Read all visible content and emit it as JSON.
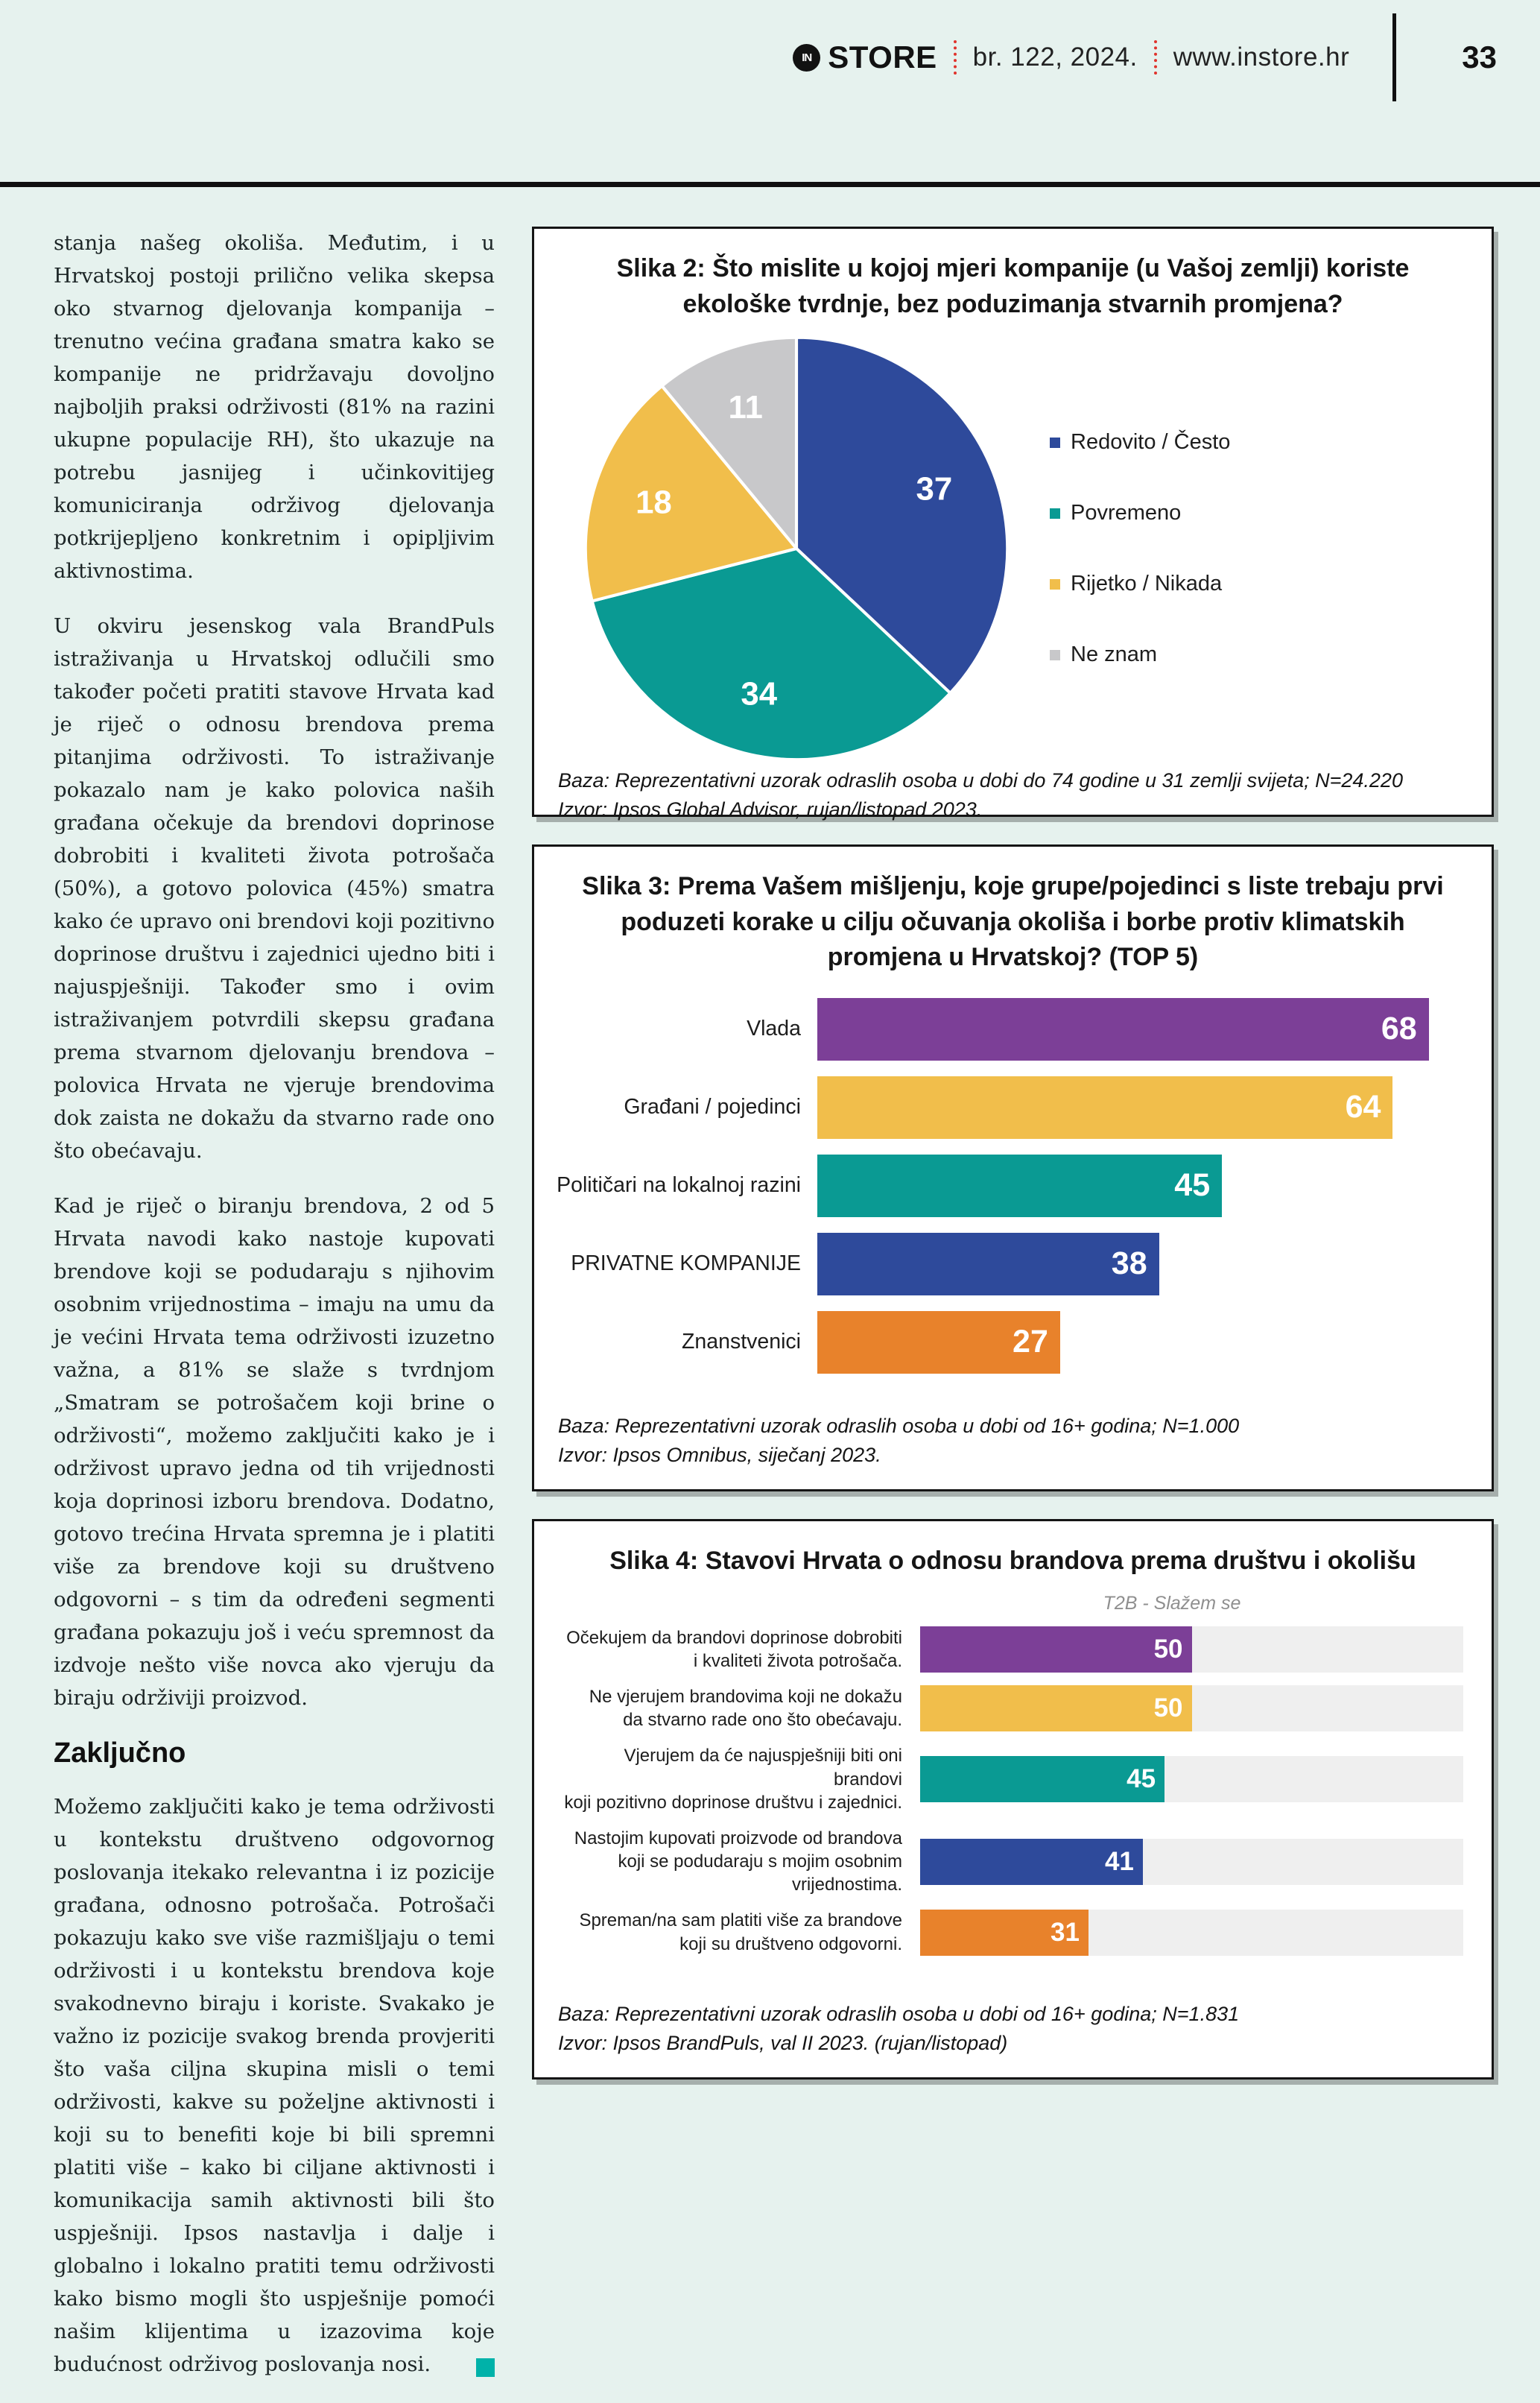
{
  "header": {
    "logo_in": "IN",
    "logo_store": "STORE",
    "issue": "br. 122, 2024.",
    "website": "www.instore.hr",
    "page_number": "33"
  },
  "article": {
    "paragraphs": [
      "stanja našeg okoliša. Međutim, i u Hrvatskoj postoji prilično velika skepsa oko stvarnog djelovanja kompanija – trenutno većina građana smatra kako se kompanije ne pridržavaju dovoljno najboljih praksi održivosti (81% na razini ukupne populacije RH), što ukazuje na potrebu jasnijeg i učinkovitijeg komuniciranja održivog djelovanja potkrijepljeno konkretnim i opipljivim aktivnostima.",
      "U okviru jesenskog vala BrandPuls istraživanja u Hrvatskoj odlučili smo također početi pratiti stavove Hrvata kad je riječ o odnosu brendova prema pitanjima održivosti. To istraživanje pokazalo nam je kako polovica naših građana očekuje da brendovi doprinose dobrobiti i kvaliteti života potrošača (50%), a gotovo polovica (45%) smatra kako će upravo oni brendovi koji pozitivno doprinose društvu i zajednici ujedno biti i najuspješniji. Također smo i ovim istraživanjem potvrdili skepsu građana prema stvarnom djelovanju brendova – polovica Hrvata ne vjeruje brendovima dok zaista ne dokažu da stvarno rade ono što obećavaju.",
      "Kad je riječ o biranju brendova, 2 od 5 Hrvata navodi kako nastoje kupovati brendove koji se podudaraju s njihovim osobnim vrijednostima – imaju na umu da je većini Hrvata tema održivosti izuzetno važna, a 81% se slaže s tvrdnjom „Smatram se potrošačem koji brine o održivosti“, možemo zaključiti kako je i održivost upravo jedna od tih vrijednosti koja doprinosi izboru brendova. Dodatno, gotovo trećina Hrvata spremna je i platiti više za brendove koji su društveno odgovorni – s tim da određeni segmenti građana pokazuju još i veću spremnost da izdvoje nešto više novca ako vjeruju da biraju održiviji proizvod."
    ],
    "subheading": "Zaključno",
    "closing_paragraph": "Možemo zaključiti kako je tema održivosti u kontekstu društveno odgovornog poslovanja itekako relevantna i iz pozicije građana, odnosno potrošača. Potrošači pokazuju kako sve više razmišljaju o temi održivosti i u kontekstu brendova koje svakodnevno biraju i koriste. Svakako je važno iz pozicije svakog brenda provjeriti što vaša ciljna skupina misli o temi održivosti, kakve su poželjne aktivnosti i koji su to benefiti koje bi bili spremni platiti više – kako bi ciljane aktivnosti i komunikacija samih aktivnosti bili što uspješniji. Ipsos nastavlja i dalje i globalno i lokalno pratiti temu održivosti kako bismo mogli što uspješnije pomoći našim klijentima u izazovima koje budućnost održivog poslovanja nosi."
  },
  "chart_data": [
    {
      "type": "pie",
      "title": "Slika 2: Što mislite u kojoj mjeri kompanije (u Vašoj zemlji) koriste ekološke tvrdnje, bez poduzimanja stvarnih promjena?",
      "slices": [
        {
          "label": "Redovito / Često",
          "value": 37,
          "color": "#2E4A9B"
        },
        {
          "label": "Povremeno",
          "value": 34,
          "color": "#0A9A93"
        },
        {
          "label": "Rijetko / Nikada",
          "value": 18,
          "color": "#F1BE4B"
        },
        {
          "label": "Ne znam",
          "value": 11,
          "color": "#C8C8CA"
        }
      ],
      "legend_position": "right",
      "base": "Baza: Reprezentativni uzorak odraslih osoba u dobi do 74 godine u 31 zemlji svijeta; N=24.220",
      "source": "Izvor: Ipsos Global Advisor, rujan/listopad 2023."
    },
    {
      "type": "bar",
      "title": "Slika 3: Prema Vašem mišljenju, koje grupe/pojedinci s liste trebaju prvi poduzeti korake u cilju očuvanja okoliša i borbe protiv klimatskih promjena u Hrvatskoj? (TOP 5)",
      "categories": [
        "Vlada",
        "Građani / pojedinci",
        "Političari na lokalnoj razini",
        "PRIVATNE KOMPANIJE",
        "Znanstvenici"
      ],
      "values": [
        68,
        64,
        45,
        38,
        27
      ],
      "colors": [
        "#7C3F97",
        "#F1BE4B",
        "#0A9A93",
        "#2E4A9B",
        "#E8822B"
      ],
      "xlim": [
        0,
        72
      ],
      "track": false,
      "base": "Baza: Reprezentativni uzorak odraslih osoba u dobi od 16+ godina; N=1.000",
      "source": "Izvor: Ipsos Omnibus, siječanj 2023."
    },
    {
      "type": "bar",
      "title": "Slika 4: Stavovi Hrvata o odnosu brandova prema društvu i okolišu",
      "subtitle": "T2B - Slažem se",
      "categories": [
        "Očekujem da brandovi doprinose dobrobiti\ni kvaliteti života potrošača.",
        "Ne vjerujem brandovima koji ne dokažu\nda stvarno rade ono što obećavaju.",
        "Vjerujem da će najuspješniji biti oni brandovi\nkoji pozitivno doprinose društvu i zajednici.",
        "Nastojim kupovati proizvode od brandova\nkoji se podudaraju s mojim osobnim vrijednostima.",
        "Spreman/na sam platiti više za brandove\nkoji su društveno odgovorni."
      ],
      "values": [
        50,
        50,
        45,
        41,
        31
      ],
      "colors": [
        "#7C3F97",
        "#F1BE4B",
        "#0A9A93",
        "#2E4A9B",
        "#E8822B"
      ],
      "xlim": [
        0,
        100
      ],
      "track": true,
      "base": "Baza: Reprezentativni uzorak odraslih osoba u dobi od 16+ godina; N=1.831",
      "source": "Izvor: Ipsos BrandPuls, val II 2023. (rujan/listopad)"
    }
  ]
}
